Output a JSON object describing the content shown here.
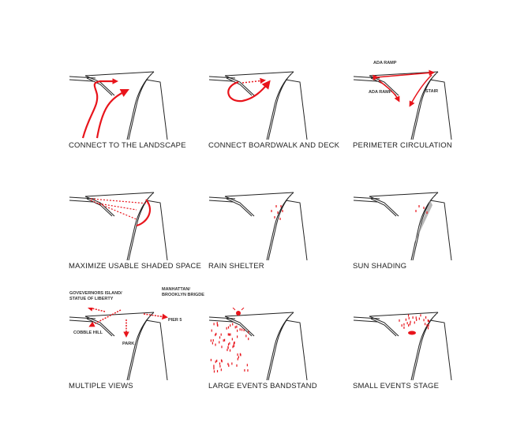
{
  "panels": [
    {
      "caption": "CONNECT TO THE LANDSCAPE"
    },
    {
      "caption": "CONNECT BOARDWALK AND DECK"
    },
    {
      "caption": "PERIMETER CIRCULATION",
      "notes": [
        "ADA RAMP",
        "ADA RAMP",
        "STAIR"
      ]
    },
    {
      "caption": "MAXIMIZE USABLE SHADED SPACE"
    },
    {
      "caption": "RAIN SHELTER"
    },
    {
      "caption": "SUN SHADING"
    },
    {
      "caption": "MULTIPLE VIEWS",
      "notes": [
        "GOVEVERNORS ISLAND/",
        "STATUE OF LIBERTY",
        "MANHATTAN/",
        "BROOKLYN BRIGDE",
        "PIER 5",
        "COBBLE HILL",
        "PARK"
      ]
    },
    {
      "caption": "LARGE EVENTS BANDSTAND"
    },
    {
      "caption": "SMALL EVENTS STAGE"
    }
  ],
  "colors": {
    "accent": "#e8141b",
    "rain": "#2a9ee0",
    "sun": "#f5d800",
    "line": "#222222"
  }
}
